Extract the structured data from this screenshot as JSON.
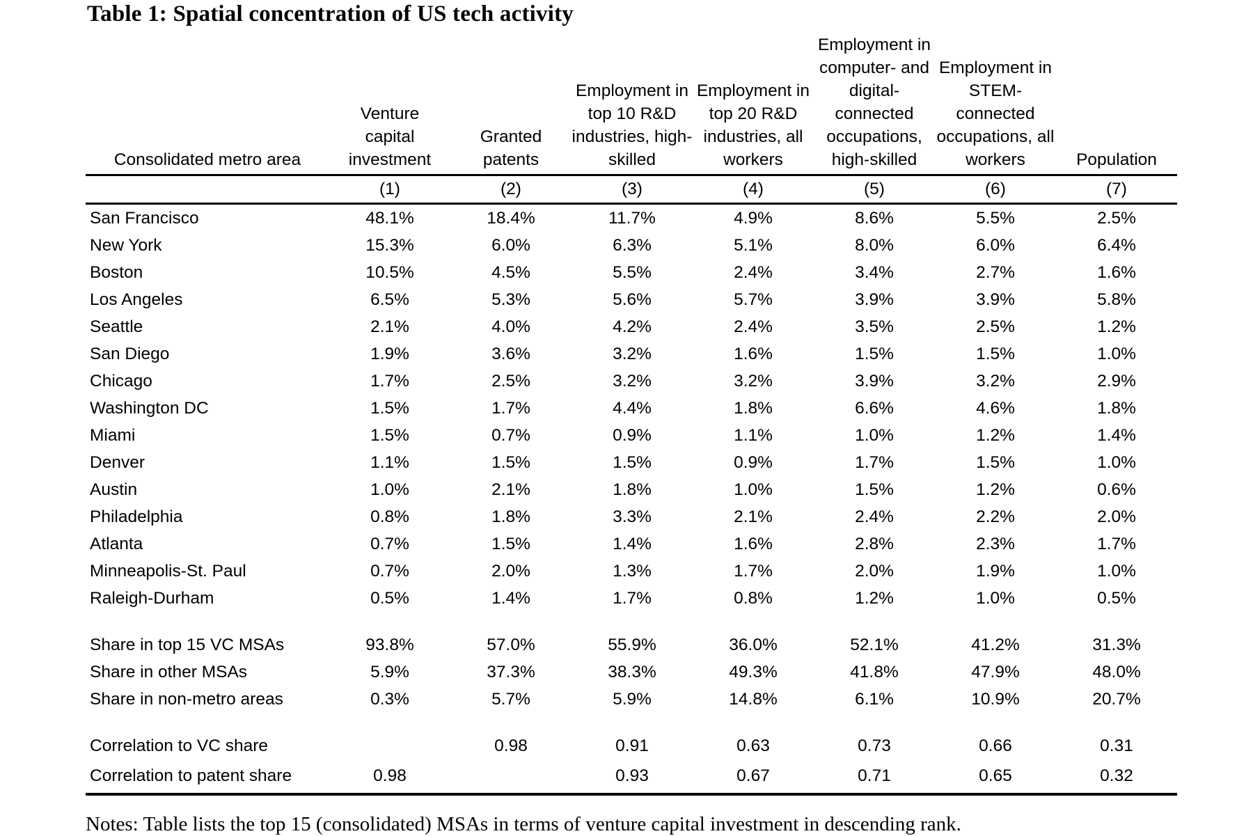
{
  "title": "Table 1: Spatial concentration of US tech activity",
  "columns": [
    {
      "header": "Consolidated metro area",
      "num": ""
    },
    {
      "header": "Venture capital investment",
      "num": "(1)"
    },
    {
      "header": "Granted patents",
      "num": "(2)"
    },
    {
      "header": "Employment in top 10 R&D industries, high-skilled",
      "num": "(3)"
    },
    {
      "header": "Employment in top 20 R&D industries, all workers",
      "num": "(4)"
    },
    {
      "header": "Employment in computer- and digital-connected occupations, high-skilled",
      "num": "(5)"
    },
    {
      "header": "Employment in STEM-connected occupations, all workers",
      "num": "(6)"
    },
    {
      "header": "Population",
      "num": "(7)"
    }
  ],
  "metros": [
    [
      "San Francisco",
      "48.1%",
      "18.4%",
      "11.7%",
      "4.9%",
      "8.6%",
      "5.5%",
      "2.5%"
    ],
    [
      "New York",
      "15.3%",
      "6.0%",
      "6.3%",
      "5.1%",
      "8.0%",
      "6.0%",
      "6.4%"
    ],
    [
      "Boston",
      "10.5%",
      "4.5%",
      "5.5%",
      "2.4%",
      "3.4%",
      "2.7%",
      "1.6%"
    ],
    [
      "Los Angeles",
      "6.5%",
      "5.3%",
      "5.6%",
      "5.7%",
      "3.9%",
      "3.9%",
      "5.8%"
    ],
    [
      "Seattle",
      "2.1%",
      "4.0%",
      "4.2%",
      "2.4%",
      "3.5%",
      "2.5%",
      "1.2%"
    ],
    [
      "San Diego",
      "1.9%",
      "3.6%",
      "3.2%",
      "1.6%",
      "1.5%",
      "1.5%",
      "1.0%"
    ],
    [
      "Chicago",
      "1.7%",
      "2.5%",
      "3.2%",
      "3.2%",
      "3.9%",
      "3.2%",
      "2.9%"
    ],
    [
      "Washington DC",
      "1.5%",
      "1.7%",
      "4.4%",
      "1.8%",
      "6.6%",
      "4.6%",
      "1.8%"
    ],
    [
      "Miami",
      "1.5%",
      "0.7%",
      "0.9%",
      "1.1%",
      "1.0%",
      "1.2%",
      "1.4%"
    ],
    [
      "Denver",
      "1.1%",
      "1.5%",
      "1.5%",
      "0.9%",
      "1.7%",
      "1.5%",
      "1.0%"
    ],
    [
      "Austin",
      "1.0%",
      "2.1%",
      "1.8%",
      "1.0%",
      "1.5%",
      "1.2%",
      "0.6%"
    ],
    [
      "Philadelphia",
      "0.8%",
      "1.8%",
      "3.3%",
      "2.1%",
      "2.4%",
      "2.2%",
      "2.0%"
    ],
    [
      "Atlanta",
      "0.7%",
      "1.5%",
      "1.4%",
      "1.6%",
      "2.8%",
      "2.3%",
      "1.7%"
    ],
    [
      "Minneapolis-St. Paul",
      "0.7%",
      "2.0%",
      "1.3%",
      "1.7%",
      "2.0%",
      "1.9%",
      "1.0%"
    ],
    [
      "Raleigh-Durham",
      "0.5%",
      "1.4%",
      "1.7%",
      "0.8%",
      "1.2%",
      "1.0%",
      "0.5%"
    ]
  ],
  "shares": [
    [
      "Share in top 15 VC MSAs",
      "93.8%",
      "57.0%",
      "55.9%",
      "36.0%",
      "52.1%",
      "41.2%",
      "31.3%"
    ],
    [
      "Share in other MSAs",
      "5.9%",
      "37.3%",
      "38.3%",
      "49.3%",
      "41.8%",
      "47.9%",
      "48.0%"
    ],
    [
      "Share in non-metro areas",
      "0.3%",
      "5.7%",
      "5.9%",
      "14.8%",
      "6.1%",
      "10.9%",
      "20.7%"
    ]
  ],
  "correlations": [
    [
      "Correlation to VC share",
      "",
      "0.98",
      "0.91",
      "0.63",
      "0.73",
      "0.66",
      "0.31"
    ],
    [
      "Correlation to patent share",
      "0.98",
      "",
      "0.93",
      "0.67",
      "0.71",
      "0.65",
      "0.32"
    ]
  ],
  "notes": "Notes: Table lists the top 15 (consolidated) MSAs in terms of venture capital investment in descending rank."
}
